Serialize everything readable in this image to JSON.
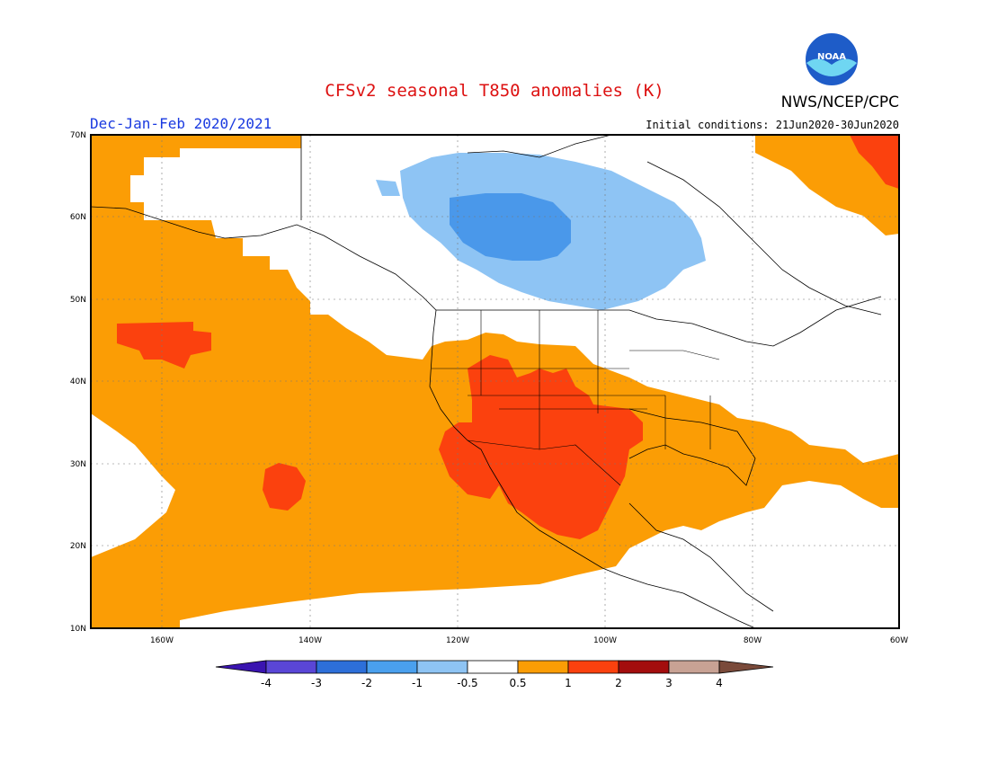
{
  "title": "CFSv2 seasonal T850 anomalies (K)",
  "org": "NWS/NCEP/CPC",
  "logo_text": "NOAA",
  "season": "Dec-Jan-Feb 2020/2021",
  "initial_conditions": "Initial conditions: 21Jun2020-30Jun2020",
  "lat_labels": [
    "70N",
    "60N",
    "50N",
    "40N",
    "30N",
    "20N",
    "10N"
  ],
  "lon_labels": [
    "160W",
    "140W",
    "120W",
    "100W",
    "80W",
    "60W"
  ],
  "colorbar": {
    "tick_labels": [
      "-4",
      "-3",
      "-2",
      "-1",
      "-0.5",
      "0.5",
      "1",
      "2",
      "3",
      "4"
    ],
    "colors": [
      "#3a14b0",
      "#5a46d6",
      "#2d6fd9",
      "#4aa0ee",
      "#8ec4f4",
      "#ffffff",
      "#fb9d05",
      "#fb410e",
      "#a30d0d",
      "#c8a294",
      "#7a4a3a"
    ]
  },
  "map_colors": {
    "warm": "#fb9d05",
    "hot": "#fb410e",
    "cool": "#8ec4f4",
    "cold": "#4a98ea"
  }
}
